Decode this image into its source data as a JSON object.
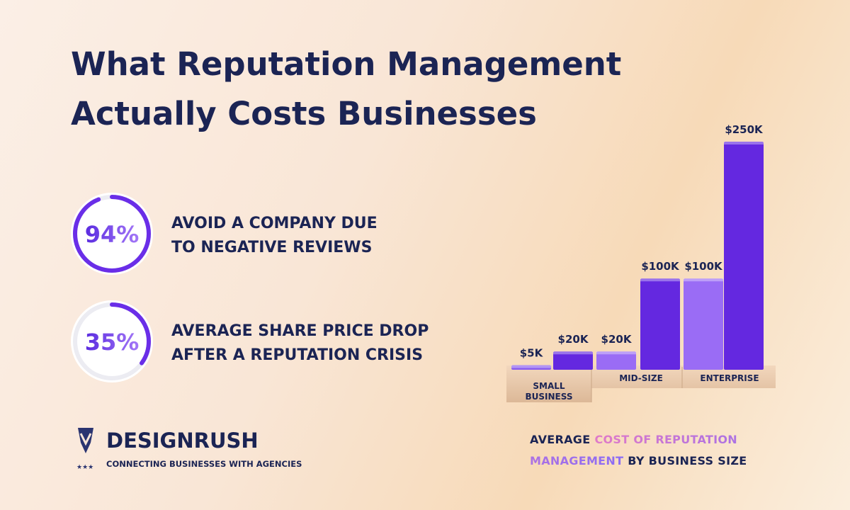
{
  "title": [
    "What Reputation Management",
    "Actually Costs Businesses"
  ],
  "stats": [
    {
      "value": 94,
      "label": "94%",
      "lines": [
        "AVOID A COMPANY DUE",
        "TO NEGATIVE REVIEWS"
      ],
      "color": "#6a2ee8"
    },
    {
      "value": 35,
      "label": "35%",
      "lines": [
        "AVERAGE SHARE PRICE DROP",
        "AFTER A REPUTATION CRISIS"
      ],
      "color": "#6a2ee8"
    }
  ],
  "brand": {
    "name": "DESIGNRUSH",
    "tagline": "CONNECTING BUSINESSES WITH AGENCIES"
  },
  "chart_data": {
    "type": "bar",
    "categories": [
      null,
      null,
      null,
      null,
      null,
      null
    ],
    "groups": [
      "SMALL BUSINESS",
      "MID-SIZE",
      "ENTERPRISE"
    ],
    "values": [
      5000,
      20000,
      20000,
      100000,
      100000,
      250000
    ],
    "value_labels": [
      "$5K",
      "$20K",
      "$20K",
      "$100K",
      "$100K",
      "$250K"
    ],
    "colors": [
      "#8a5cf0",
      "#6428e0",
      "#9a6cf5",
      "#6428e0",
      "#9a6cf5",
      "#6428e0"
    ],
    "caption": [
      "AVERAGE",
      "COST OF REPUTATION MANAGEMENT",
      "BY BUSINESS SIZE"
    ]
  }
}
